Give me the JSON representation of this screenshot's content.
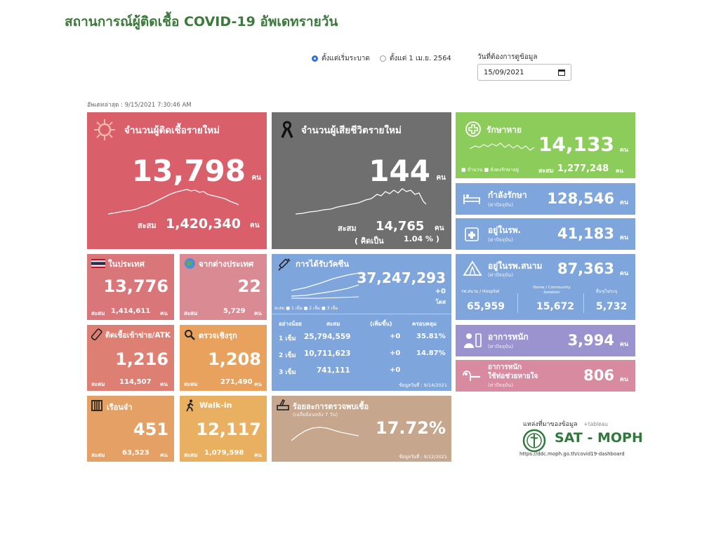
{
  "header": {
    "title": "สถานการณ์ผู้ติดเชื้อ COVID-19 อัพเดทรายวัน",
    "radio_1": "ตั้งแต่เริ่มระบาด",
    "radio_2": "ตั้งแต่ 1 เม.ย. 2564",
    "date_label": "วันที่ต้องการดูข้อมูล",
    "date_value": "15/09/2021",
    "updated": "อัพเดทล่าสุด : 9/15/2021 7:30:46 AM"
  },
  "new_cases": {
    "label": "จำนวนผู้ติดเชื้อรายใหม่",
    "value": "13,798",
    "unit": "คน",
    "cum_label": "สะสม",
    "cum_value": "1,420,340",
    "cum_unit": "คน"
  },
  "new_deaths": {
    "label": "จำนวนผู้เสียชีวิตรายใหม่",
    "value": "144",
    "unit": "คน",
    "cum_label": "สะสม",
    "cum_value": "14,765",
    "cum_unit": "คน",
    "pct_label": "( คิดเป็น",
    "pct_value": "1.04 % )"
  },
  "recovered": {
    "label": "รักษาหาย",
    "value": "14,133",
    "unit": "คน",
    "legend_1": "จำนวน",
    "legend_2": "ยังคงรักษาอยู่",
    "cum_label": "สะสม",
    "cum_value": "1,277,248",
    "cum_unit": "คน"
  },
  "treating": {
    "label": "กำลังรักษา",
    "sub": "(ค่าปัจจุบัน)",
    "value": "128,546",
    "unit": "คน"
  },
  "hospital": {
    "label": "อยู่ในรพ.",
    "sub": "(ค่าปัจจุบัน)",
    "value": "41,183",
    "unit": "คน"
  },
  "field_hospital": {
    "label": "อยู่ในรพ.สนาม",
    "sub": "(ค่าปัจจุบัน)",
    "value": "87,363",
    "unit": "คน",
    "col1_label": "รพ.สนาม / Hospitel",
    "col1_value": "65,959",
    "col2_label": "Home / Community Isolation",
    "col2_value": "15,672",
    "col3_label": "อื่นๆ/ไม่ระบุ",
    "col3_value": "5,732"
  },
  "severe": {
    "label": "อาการหนัก",
    "sub": "(ค่าปัจจุบัน)",
    "value": "3,994",
    "unit": "คน"
  },
  "ventilator": {
    "label": "อาการหนัก",
    "label2": "ใช้ท่อช่วยหายใจ",
    "sub": "(ค่าปัจจุบัน)",
    "value": "806",
    "unit": "คน"
  },
  "domestic": {
    "label": "ในประเทศ",
    "value": "13,776",
    "cum_label": "สะสม",
    "cum_value": "1,414,611",
    "cum_unit": "คน"
  },
  "imported": {
    "label": "จากต่างประเทศ",
    "value": "22",
    "cum_label": "สะสม",
    "cum_value": "5,729",
    "cum_unit": "คน"
  },
  "atk": {
    "label": "ติดเชื้อเข้าข่าย/ATK",
    "value": "1,216",
    "cum_label": "สะสม",
    "cum_value": "114,507",
    "cum_unit": "คน"
  },
  "active_search": {
    "label": "ตรวจเชิงรุก",
    "value": "1,208",
    "cum_label": "สะสม",
    "cum_value": "271,490",
    "cum_unit": "คน"
  },
  "prison": {
    "label": "เรือนจำ",
    "value": "451",
    "cum_label": "สะสม",
    "cum_value": "63,523",
    "cum_unit": "คน"
  },
  "walkin": {
    "label": "Walk-in",
    "value": "12,117",
    "cum_label": "สะสม",
    "cum_value": "1,079,598",
    "cum_unit": "คน"
  },
  "vaccine": {
    "label": "การได้รับวัคซีน",
    "value": "37,247,293",
    "change": "+0",
    "unit": "โดส",
    "legend": "สะสม ■ 1 เข็ม ■ 2 เข็ม ■ 3 เข็ม",
    "headers": [
      "อย่างน้อย",
      "สะสม",
      "(เพิ่มขึ้น)",
      "ครอบคลุม"
    ],
    "rows": [
      [
        "1 เข็ม",
        "25,794,559",
        "+0",
        "35.81%"
      ],
      [
        "2 เข็ม",
        "10,711,623",
        "+0",
        "14.87%"
      ],
      [
        "3 เข็ม",
        "741,111",
        "+0",
        ""
      ]
    ],
    "date": "ข้อมูลวันที่ : 9/14/2021"
  },
  "positivity": {
    "label": "ร้อยละการตรวจพบเชื้อ",
    "sub": "(เฉลี่ยย้อนหลัง 7 วัน)",
    "value": "17.72%",
    "date": "ข้อมูลวันที่ : 9/12/2021"
  },
  "source": {
    "label": "แหล่งที่มาของข้อมูล",
    "tableau": "+tableau",
    "sat": "SAT - MOPH",
    "url": "https://ddc.moph.go.th/covid19-dashboard"
  },
  "colors": {
    "red": "#d9606a",
    "gray": "#6f6f6f",
    "green": "#8ccc5a",
    "blue": "#7fa6dc",
    "purple": "#9b93cf",
    "pink": "#d88aa0",
    "orange": "#e9a25e",
    "tan": "#c6a68c"
  }
}
